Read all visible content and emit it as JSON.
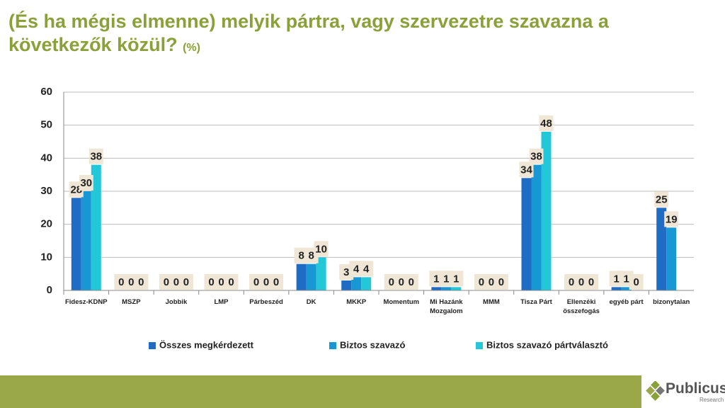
{
  "title": "(És ha mégis elmenne) melyik pártra, vagy szervezetre szavazna a következők közül?",
  "title_unit": "(%)",
  "logo": {
    "name": "Publicus",
    "sub": "Research"
  },
  "chart_data": {
    "type": "bar",
    "categories": [
      "Fidesz-KDNP",
      "MSZP",
      "Jobbik",
      "LMP",
      "Párbeszéd",
      "DK",
      "MKKP",
      "Momentum",
      "Mi Hazánk Mozgalom",
      "MMM",
      "Tisza Párt",
      "Ellenzéki összefogás",
      "egyéb párt",
      "bizonytalan"
    ],
    "series": [
      {
        "name": "Összes megkérdezett",
        "color": "#1f6cc4",
        "values": [
          28,
          0,
          0,
          0,
          0,
          8,
          3,
          0,
          1,
          0,
          34,
          0,
          1,
          25
        ]
      },
      {
        "name": "Biztos szavazó",
        "color": "#1798d4",
        "values": [
          30,
          0,
          0,
          0,
          0,
          8,
          4,
          0,
          1,
          0,
          38,
          0,
          1,
          19
        ]
      },
      {
        "name": "Biztos szavazó pártválasztó",
        "color": "#22c8d8",
        "values": [
          38,
          0,
          0,
          0,
          0,
          10,
          4,
          0,
          1,
          0,
          48,
          0,
          0,
          null
        ]
      }
    ],
    "ylim": [
      0,
      60
    ],
    "yticks": [
      0,
      10,
      20,
      30,
      40,
      50,
      60
    ],
    "grid": true,
    "legend": "bottom"
  }
}
